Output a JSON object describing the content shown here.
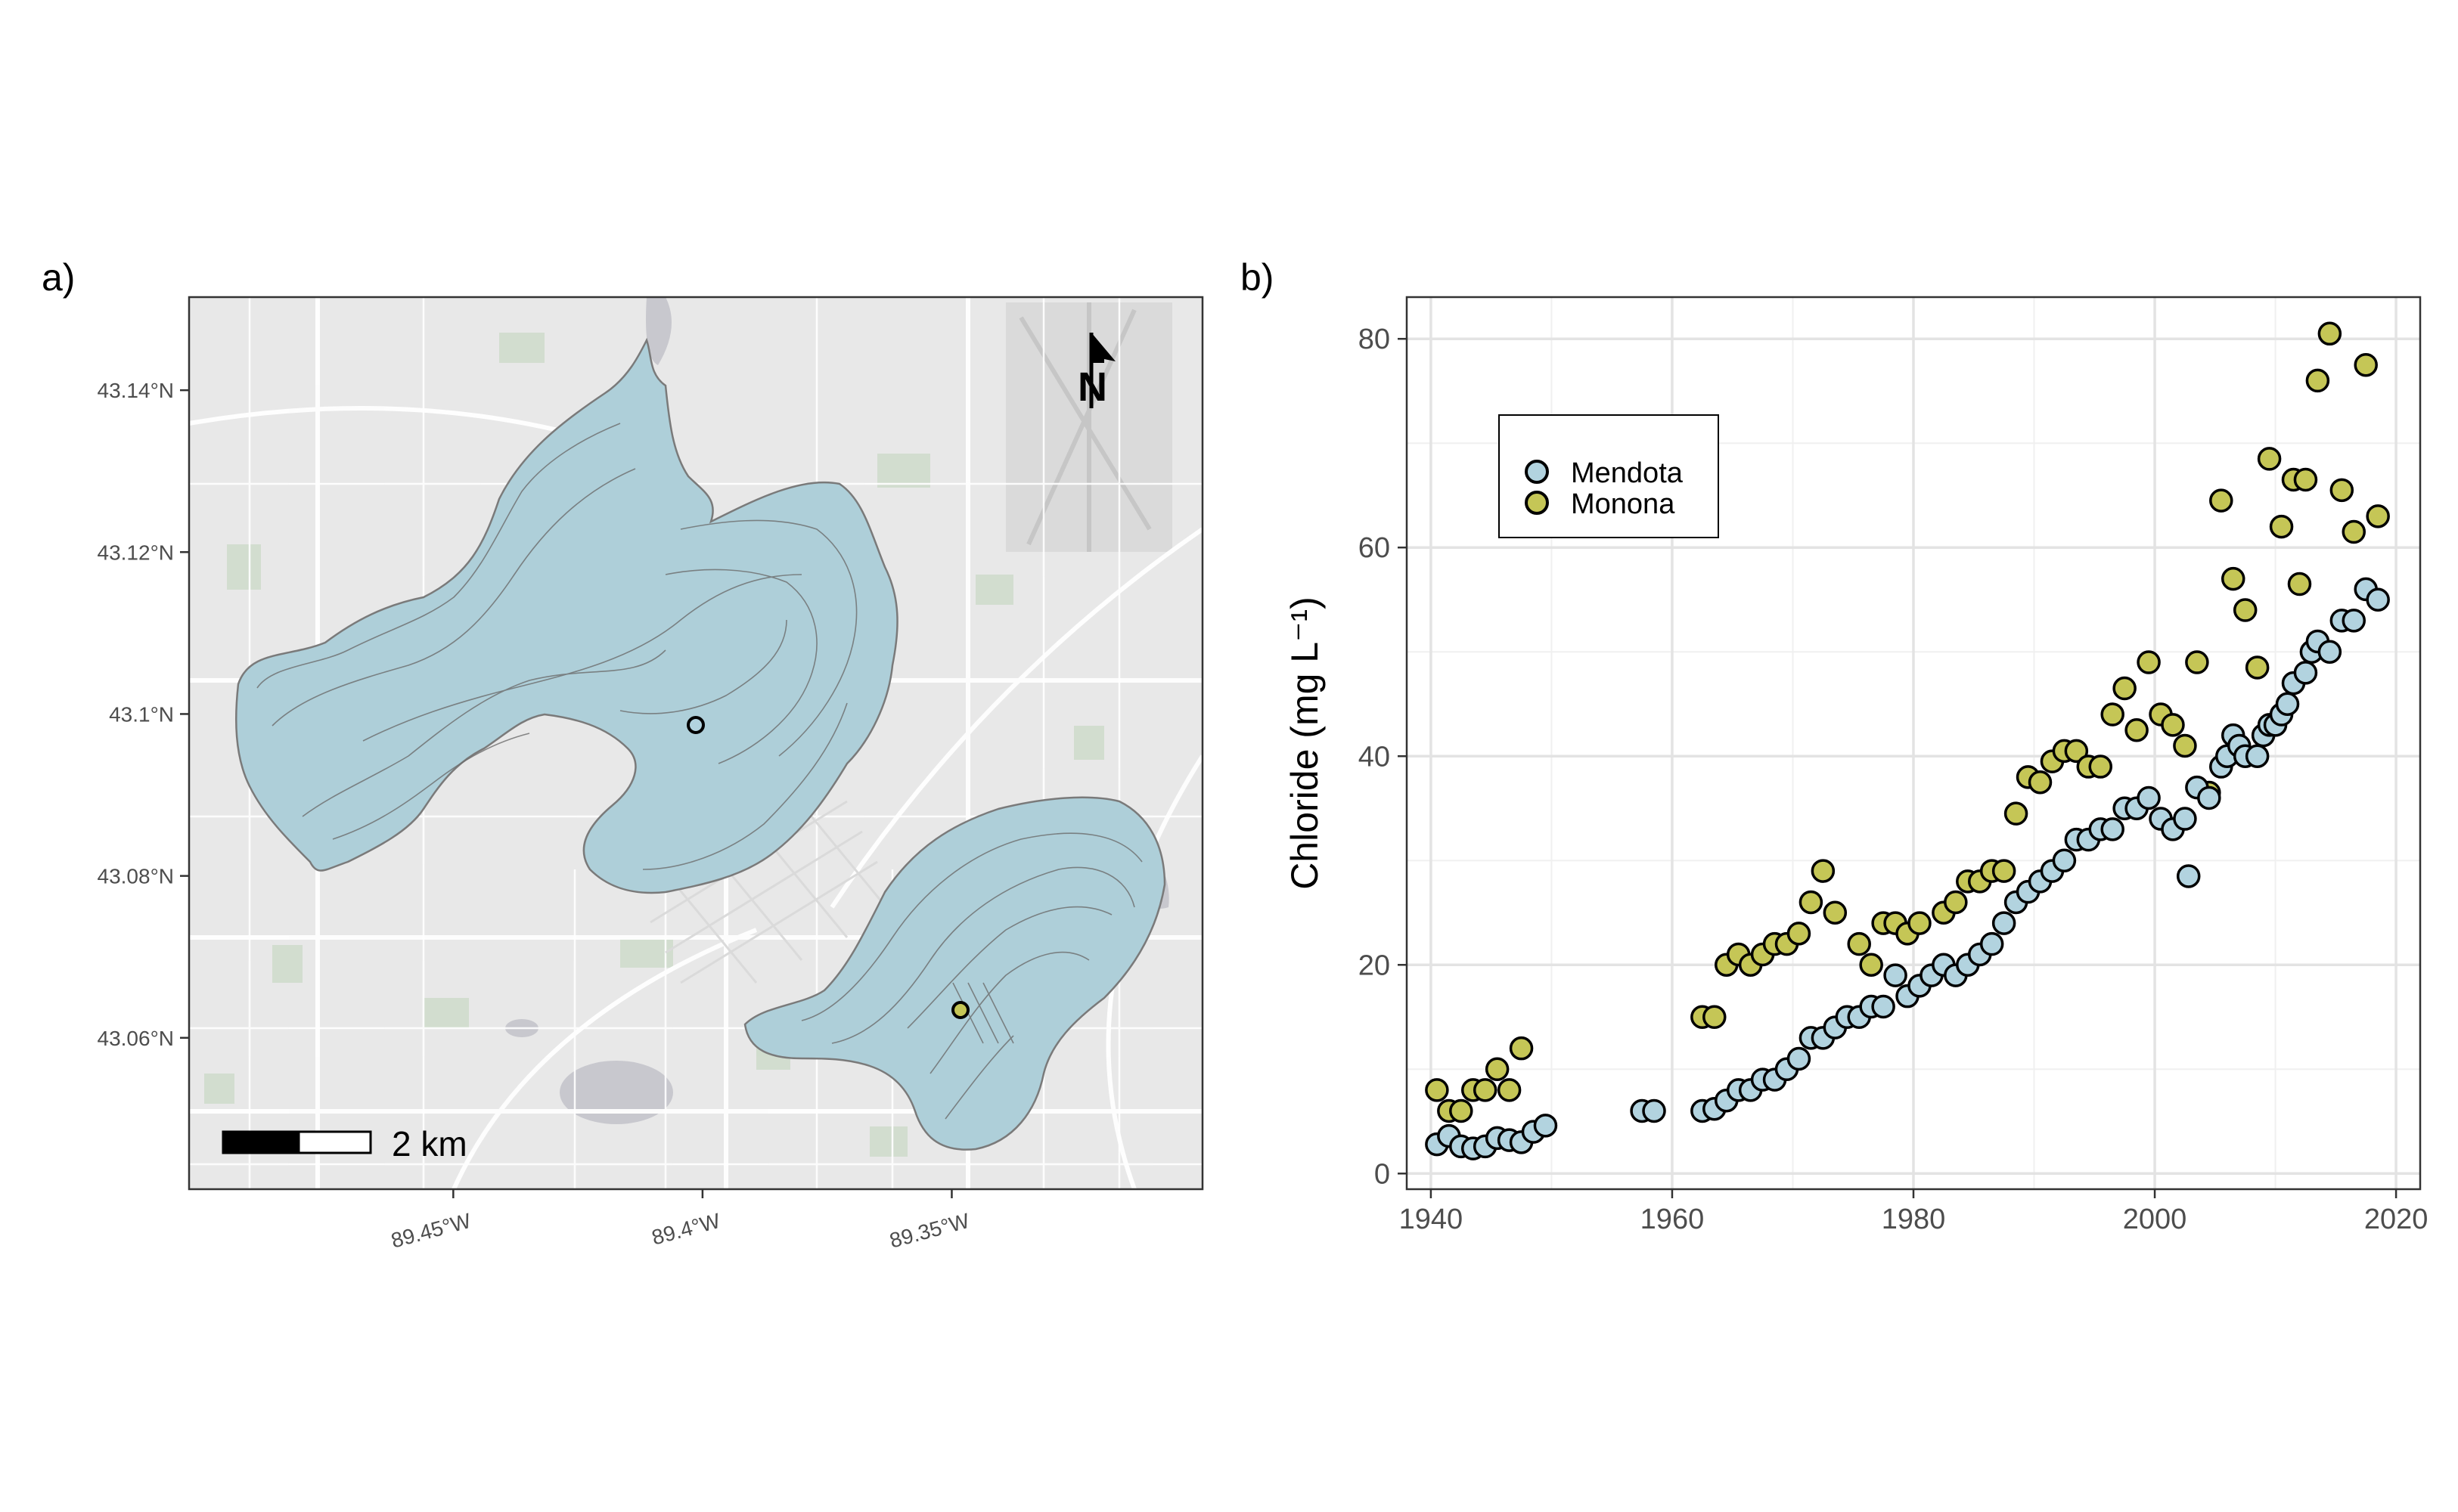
{
  "panels": {
    "a_label": "a)",
    "b_label": "b)"
  },
  "map": {
    "lat_ticks": [
      "43.14°N",
      "43.12°N",
      "43.1°N",
      "43.08°N",
      "43.06°N"
    ],
    "lat_values": [
      43.14,
      43.12,
      43.1,
      43.08,
      43.06
    ],
    "lat_range": [
      43.0413,
      43.1515
    ],
    "lon_ticks": [
      "89.45°W",
      "89.4°W",
      "89.35°W"
    ],
    "lon_values": [
      -89.45,
      -89.4,
      -89.35
    ],
    "lon_range": [
      -89.503,
      -89.2997
    ],
    "scale_bar_label": "2 km",
    "north_arrow_label": "N",
    "background_color": "#e8e8e8",
    "lake_color": "#aecfd9",
    "stations": [
      {
        "lake": "Mendota",
        "lat": 43.099,
        "lon": -89.405,
        "color": "#b2d3df"
      },
      {
        "lake": "Monona",
        "lat": 43.064,
        "lon": -89.362,
        "color": "#c5c656"
      }
    ]
  },
  "chart_data": {
    "type": "scatter",
    "xlabel": "",
    "ylabel": "Chloride (mg L⁻¹)",
    "xlim": [
      1938,
      2022
    ],
    "ylim": [
      -1.5,
      84
    ],
    "x_ticks": [
      1940,
      1960,
      1980,
      2000,
      2020
    ],
    "y_ticks": [
      0,
      20,
      40,
      60,
      80
    ],
    "grid": true,
    "legend_position": "top-left",
    "series": [
      {
        "name": "Mendota",
        "color": "#b2d3df",
        "points": [
          [
            1940.5,
            2.8
          ],
          [
            1941.5,
            3.6
          ],
          [
            1942.5,
            2.6
          ],
          [
            1943.5,
            2.4
          ],
          [
            1944.5,
            2.6
          ],
          [
            1945.5,
            3.4
          ],
          [
            1946.5,
            3.2
          ],
          [
            1947.5,
            3.0
          ],
          [
            1948.5,
            4.0
          ],
          [
            1949.5,
            4.6
          ],
          [
            1957.5,
            6.0
          ],
          [
            1958.5,
            6.0
          ],
          [
            1962.5,
            6.0
          ],
          [
            1963.5,
            6.2
          ],
          [
            1964.5,
            7.0
          ],
          [
            1965.5,
            8.0
          ],
          [
            1966.5,
            8.0
          ],
          [
            1967.5,
            9.0
          ],
          [
            1968.5,
            9.0
          ],
          [
            1969.5,
            10.0
          ],
          [
            1970.5,
            11.0
          ],
          [
            1971.5,
            13.0
          ],
          [
            1972.5,
            13.0
          ],
          [
            1973.5,
            14.0
          ],
          [
            1974.5,
            15.0
          ],
          [
            1975.5,
            15.0
          ],
          [
            1976.5,
            16.0
          ],
          [
            1977.5,
            16.0
          ],
          [
            1978.5,
            19.0
          ],
          [
            1979.5,
            17.0
          ],
          [
            1980.5,
            18.0
          ],
          [
            1981.5,
            19.0
          ],
          [
            1982.5,
            20.0
          ],
          [
            1983.5,
            19.0
          ],
          [
            1984.5,
            20.0
          ],
          [
            1985.5,
            21.0
          ],
          [
            1986.5,
            22.0
          ],
          [
            1987.5,
            24.0
          ],
          [
            1988.5,
            26.0
          ],
          [
            1989.5,
            27.0
          ],
          [
            1990.5,
            28.0
          ],
          [
            1991.5,
            29.0
          ],
          [
            1992.5,
            30.0
          ],
          [
            1993.5,
            32.0
          ],
          [
            1994.5,
            32.0
          ],
          [
            1995.5,
            33.0
          ],
          [
            1996.5,
            33.0
          ],
          [
            1997.5,
            35.0
          ],
          [
            1998.5,
            35.0
          ],
          [
            1999.5,
            36.0
          ],
          [
            2000.5,
            34.0
          ],
          [
            2001.5,
            33.0
          ],
          [
            2002.5,
            34.0
          ],
          [
            2002.8,
            28.5
          ],
          [
            2003.5,
            37.0
          ],
          [
            2004.5,
            36.0
          ],
          [
            2005.5,
            39.0
          ],
          [
            2006.0,
            40.0
          ],
          [
            2006.5,
            42.0
          ],
          [
            2007.0,
            41.0
          ],
          [
            2007.5,
            40.0
          ],
          [
            2008.5,
            40.0
          ],
          [
            2009.0,
            42.0
          ],
          [
            2009.5,
            43.0
          ],
          [
            2010.0,
            43.0
          ],
          [
            2010.5,
            44.0
          ],
          [
            2011.0,
            45.0
          ],
          [
            2011.5,
            47.0
          ],
          [
            2012.5,
            48.0
          ],
          [
            2013.0,
            50.0
          ],
          [
            2013.5,
            51.0
          ],
          [
            2014.5,
            50.0
          ],
          [
            2015.5,
            53.0
          ],
          [
            2016.5,
            53.0
          ],
          [
            2017.5,
            56.0
          ],
          [
            2018.5,
            55.0
          ]
        ]
      },
      {
        "name": "Monona",
        "color": "#c5c656",
        "points": [
          [
            1940.5,
            8.0
          ],
          [
            1941.5,
            6.0
          ],
          [
            1942.5,
            6.0
          ],
          [
            1943.5,
            8.0
          ],
          [
            1944.5,
            8.0
          ],
          [
            1945.5,
            10.0
          ],
          [
            1946.5,
            8.0
          ],
          [
            1947.5,
            12.0
          ],
          [
            1962.5,
            15.0
          ],
          [
            1963.5,
            15.0
          ],
          [
            1964.5,
            20.0
          ],
          [
            1965.5,
            21.0
          ],
          [
            1966.5,
            20.0
          ],
          [
            1967.5,
            21.0
          ],
          [
            1968.5,
            22.0
          ],
          [
            1969.5,
            22.0
          ],
          [
            1970.5,
            23.0
          ],
          [
            1971.5,
            26.0
          ],
          [
            1972.5,
            29.0
          ],
          [
            1973.5,
            25.0
          ],
          [
            1975.5,
            22.0
          ],
          [
            1976.5,
            20.0
          ],
          [
            1977.5,
            24.0
          ],
          [
            1978.5,
            24.0
          ],
          [
            1979.5,
            23.0
          ],
          [
            1980.5,
            24.0
          ],
          [
            1982.5,
            25.0
          ],
          [
            1983.5,
            26.0
          ],
          [
            1984.5,
            28.0
          ],
          [
            1985.5,
            28.0
          ],
          [
            1986.5,
            29.0
          ],
          [
            1987.5,
            29.0
          ],
          [
            1988.5,
            34.5
          ],
          [
            1989.5,
            38.0
          ],
          [
            1990.5,
            37.5
          ],
          [
            1991.5,
            39.5
          ],
          [
            1992.5,
            40.5
          ],
          [
            1993.5,
            40.5
          ],
          [
            1994.5,
            39.0
          ],
          [
            1995.5,
            39.0
          ],
          [
            1996.5,
            44.0
          ],
          [
            1997.5,
            46.5
          ],
          [
            1998.5,
            42.5
          ],
          [
            1999.5,
            49.0
          ],
          [
            2000.5,
            44.0
          ],
          [
            2001.5,
            43.0
          ],
          [
            2002.5,
            41.0
          ],
          [
            2003.5,
            49.0
          ],
          [
            2004.5,
            36.5
          ],
          [
            2005.5,
            64.5
          ],
          [
            2006.5,
            57.0
          ],
          [
            2007.5,
            54.0
          ],
          [
            2008.5,
            48.5
          ],
          [
            2009.5,
            68.5
          ],
          [
            2010.5,
            62.0
          ],
          [
            2011.5,
            66.5
          ],
          [
            2012.0,
            56.5
          ],
          [
            2012.5,
            66.5
          ],
          [
            2013.5,
            76.0
          ],
          [
            2014.5,
            80.5
          ],
          [
            2015.5,
            65.5
          ],
          [
            2016.5,
            61.5
          ],
          [
            2017.5,
            77.5
          ],
          [
            2018.5,
            63.0
          ]
        ]
      }
    ]
  }
}
